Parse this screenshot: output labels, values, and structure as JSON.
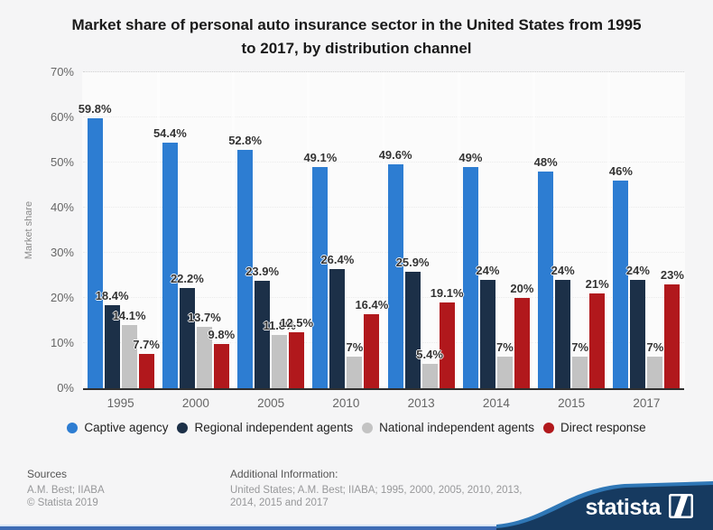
{
  "title": {
    "line1": "Market share of personal auto insurance sector in the United States from 1995",
    "line2": "to 2017, by distribution channel"
  },
  "chart_data": {
    "type": "bar",
    "title": "Market share of personal auto insurance sector in the United States from 1995 to 2017, by distribution channel",
    "xlabel": "",
    "ylabel": "Market share",
    "ylim": [
      0,
      70
    ],
    "yticks": [
      0,
      10,
      20,
      30,
      40,
      50,
      60,
      70
    ],
    "grid": "horizontal-dotted",
    "legend_position": "bottom",
    "categories": [
      "1995",
      "2000",
      "2005",
      "2010",
      "2013",
      "2014",
      "2015",
      "2017"
    ],
    "series": [
      {
        "name": "Captive agency",
        "color": "#2d7dd2",
        "values": [
          59.8,
          54.4,
          52.8,
          49.1,
          49.6,
          49,
          48,
          46
        ]
      },
      {
        "name": "Regional independent agents",
        "color": "#1c3048",
        "values": [
          18.4,
          22.2,
          23.9,
          26.4,
          25.9,
          24,
          24,
          24
        ]
      },
      {
        "name": "National independent agents",
        "color": "#c3c3c3",
        "values": [
          14.1,
          13.7,
          11.8,
          7,
          5.4,
          7,
          7,
          7
        ]
      },
      {
        "name": "Direct response",
        "color": "#b1181c",
        "values": [
          7.7,
          9.8,
          12.5,
          16.4,
          19.1,
          20,
          21,
          23
        ]
      }
    ]
  },
  "footer": {
    "sources_label": "Sources",
    "sources_line1": "A.M. Best; IIABA",
    "sources_line2": "© Statista 2019",
    "additional_label": "Additional Information:",
    "additional_line1": "United States; A.M. Best; IIABA; 1995, 2000, 2005, 2010, 2013,",
    "additional_line2": "2014, 2015 and 2017",
    "brand": "statista"
  },
  "colors": {
    "accent_blue": "#2d7dd2",
    "navy": "#1c3048",
    "gray": "#c3c3c3",
    "red": "#b1181c",
    "band_navy": "#163a60",
    "band_light": "#2f77b6",
    "strip_blue": "#3e6cb5"
  }
}
